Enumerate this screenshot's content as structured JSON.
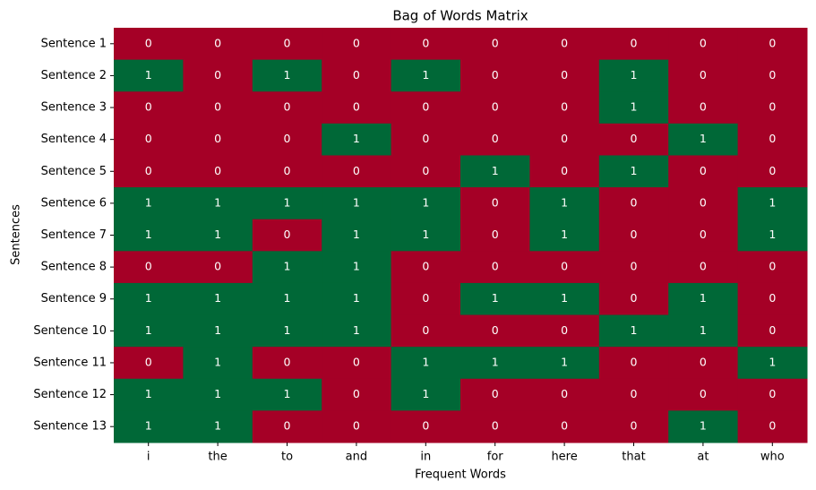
{
  "chart_data": {
    "type": "heatmap",
    "title": "Bag of Words Matrix",
    "x_label": "Frequent Words",
    "y_label": "Sentences",
    "x_categories": [
      "i",
      "the",
      "to",
      "and",
      "in",
      "for",
      "here",
      "that",
      "at",
      "who"
    ],
    "y_categories": [
      "Sentence 1",
      "Sentence 2",
      "Sentence 3",
      "Sentence 4",
      "Sentence 5",
      "Sentence 6",
      "Sentence 7",
      "Sentence 8",
      "Sentence 9",
      "Sentence 10",
      "Sentence 11",
      "Sentence 12",
      "Sentence 13"
    ],
    "values": [
      [
        0,
        0,
        0,
        0,
        0,
        0,
        0,
        0,
        0,
        0
      ],
      [
        1,
        0,
        1,
        0,
        1,
        0,
        0,
        1,
        0,
        0
      ],
      [
        0,
        0,
        0,
        0,
        0,
        0,
        0,
        1,
        0,
        0
      ],
      [
        0,
        0,
        0,
        1,
        0,
        0,
        0,
        0,
        1,
        0
      ],
      [
        0,
        0,
        0,
        0,
        0,
        1,
        0,
        1,
        0,
        0
      ],
      [
        1,
        1,
        1,
        1,
        1,
        0,
        1,
        0,
        0,
        1
      ],
      [
        1,
        1,
        0,
        1,
        1,
        0,
        1,
        0,
        0,
        1
      ],
      [
        0,
        0,
        1,
        1,
        0,
        0,
        0,
        0,
        0,
        0
      ],
      [
        1,
        1,
        1,
        1,
        0,
        1,
        1,
        0,
        1,
        0
      ],
      [
        1,
        1,
        1,
        1,
        0,
        0,
        0,
        1,
        1,
        0
      ],
      [
        0,
        1,
        0,
        0,
        1,
        1,
        1,
        0,
        0,
        1
      ],
      [
        1,
        1,
        1,
        0,
        1,
        0,
        0,
        0,
        0,
        0
      ],
      [
        1,
        1,
        0,
        0,
        0,
        0,
        0,
        0,
        1,
        0
      ]
    ],
    "vlim": [
      0,
      1
    ],
    "colors": [
      "#a50026",
      "#006837"
    ]
  }
}
